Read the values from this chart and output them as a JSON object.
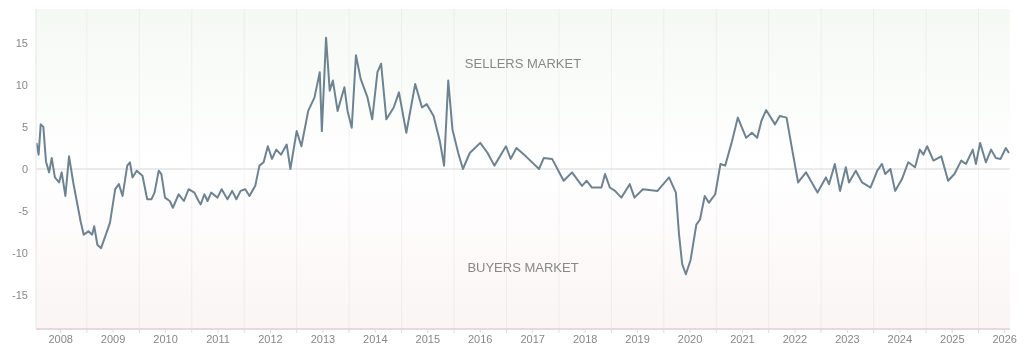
{
  "chart_data": {
    "type": "line",
    "x": [
      2007.54,
      2007.58,
      2007.62,
      2007.67,
      2007.72,
      2007.78,
      2007.83,
      2007.89,
      2007.97,
      2008.02,
      2008.09,
      2008.16,
      2008.24,
      2008.38,
      2008.44,
      2008.53,
      2008.6,
      2008.64,
      2008.7,
      2008.77,
      2008.85,
      2008.94,
      2009.04,
      2009.11,
      2009.18,
      2009.27,
      2009.32,
      2009.37,
      2009.45,
      2009.56,
      2009.65,
      2009.73,
      2009.79,
      2009.87,
      2009.92,
      2009.99,
      2010.08,
      2010.14,
      2010.25,
      2010.35,
      2010.44,
      2010.55,
      2010.63,
      2010.67,
      2010.74,
      2010.8,
      2010.87,
      2010.99,
      2011.07,
      2011.18,
      2011.27,
      2011.35,
      2011.43,
      2011.52,
      2011.6,
      2011.71,
      2011.79,
      2011.87,
      2011.95,
      2012.03,
      2012.11,
      2012.2,
      2012.31,
      2012.38,
      2012.43,
      2012.5,
      2012.59,
      2012.72,
      2012.78,
      2012.84,
      2012.94,
      2012.98,
      2013.06,
      2013.13,
      2013.19,
      2013.28,
      2013.41,
      2013.47,
      2013.55,
      2013.63,
      2013.72,
      2013.85,
      2013.94,
      2014.04,
      2014.11,
      2014.21,
      2014.35,
      2014.45,
      2014.59,
      2014.76,
      2014.89,
      2014.98,
      2015.11,
      2015.23,
      2015.31,
      2015.39,
      2015.47,
      2015.58,
      2015.67,
      2015.8,
      2016.0,
      2016.14,
      2016.27,
      2016.49,
      2016.58,
      2016.69,
      2016.87,
      2017.12,
      2017.21,
      2017.37,
      2017.59,
      2017.75,
      2017.94,
      2018.03,
      2018.13,
      2018.31,
      2018.38,
      2018.47,
      2018.57,
      2018.69,
      2018.85,
      2018.94,
      2019.1,
      2019.38,
      2019.6,
      2019.73,
      2019.79,
      2019.85,
      2019.92,
      2020.01,
      2020.12,
      2020.19,
      2020.28,
      2020.36,
      2020.48,
      2020.58,
      2020.67,
      2020.8,
      2020.91,
      2021.07,
      2021.18,
      2021.28,
      2021.36,
      2021.45,
      2021.62,
      2021.71,
      2021.84,
      2021.93,
      2022.06,
      2022.21,
      2022.43,
      2022.59,
      2022.65,
      2022.76,
      2022.86,
      2022.97,
      2023.03,
      2023.16,
      2023.28,
      2023.44,
      2023.57,
      2023.66,
      2023.72,
      2023.82,
      2023.91,
      2024.04,
      2024.16,
      2024.29,
      2024.38,
      2024.45,
      2024.52,
      2024.64,
      2024.79,
      2024.92,
      2025.04,
      2025.17,
      2025.26,
      2025.39,
      2025.45,
      2025.53,
      2025.64,
      2025.74,
      2025.83,
      2025.92,
      2026.02,
      2026.08
    ],
    "series": [
      {
        "color": "#6e8391",
        "values": [
          3.1,
          1.7,
          5.3,
          5.0,
          0.9,
          -0.4,
          1.3,
          -1.0,
          -1.6,
          -0.4,
          -3.2,
          1.5,
          -1.6,
          -6.2,
          -7.8,
          -7.4,
          -7.8,
          -6.8,
          -9.0,
          -9.4,
          -8.0,
          -6.4,
          -2.4,
          -1.8,
          -3.2,
          0.4,
          0.8,
          -1.0,
          -0.2,
          -0.8,
          -3.6,
          -3.6,
          -2.8,
          -0.2,
          -0.6,
          -3.4,
          -3.8,
          -4.6,
          -3.0,
          -3.8,
          -2.4,
          -2.8,
          -3.8,
          -4.2,
          -3.0,
          -3.8,
          -2.8,
          -3.4,
          -2.4,
          -3.6,
          -2.6,
          -3.6,
          -2.6,
          -2.4,
          -3.2,
          -2.0,
          0.4,
          0.8,
          2.7,
          1.2,
          2.3,
          1.7,
          2.9,
          0.0,
          1.9,
          4.5,
          2.7,
          6.9,
          7.7,
          8.5,
          11.5,
          4.5,
          15.6,
          9.3,
          10.5,
          6.9,
          9.7,
          6.9,
          4.9,
          13.5,
          10.7,
          8.5,
          5.9,
          11.5,
          12.5,
          5.9,
          7.3,
          9.1,
          4.3,
          10.1,
          7.3,
          7.7,
          6.3,
          3.3,
          0.4,
          10.5,
          4.7,
          1.9,
          0.0,
          1.9,
          3.1,
          1.9,
          0.4,
          2.7,
          1.2,
          2.5,
          1.5,
          0.0,
          1.3,
          1.2,
          -1.4,
          -0.4,
          -2.0,
          -1.4,
          -2.2,
          -2.2,
          -0.6,
          -2.2,
          -2.6,
          -3.4,
          -1.8,
          -3.4,
          -2.4,
          -2.6,
          -1.0,
          -2.8,
          -7.8,
          -11.3,
          -12.5,
          -10.8,
          -6.6,
          -6.0,
          -3.2,
          -4.0,
          -3.0,
          0.6,
          0.4,
          3.3,
          6.1,
          3.7,
          4.3,
          3.7,
          5.7,
          7.0,
          5.3,
          6.3,
          6.1,
          2.9,
          -1.6,
          -0.4,
          -2.8,
          -1.0,
          -1.8,
          0.6,
          -2.6,
          0.2,
          -1.6,
          -0.2,
          -1.6,
          -2.2,
          -0.2,
          0.6,
          -0.6,
          0.0,
          -2.6,
          -1.2,
          0.8,
          0.2,
          2.3,
          1.7,
          2.7,
          1.0,
          1.5,
          -1.4,
          -0.6,
          1.0,
          0.6,
          2.3,
          0.6,
          3.1,
          0.8,
          2.3,
          1.3,
          1.2,
          2.5,
          1.9
        ]
      }
    ],
    "xlim": [
      2007.53,
      2026.1
    ],
    "xticks": [
      2008,
      {
        "value": 2008.5,
        "label": null
      },
      2009,
      {
        "value": 2009.5,
        "label": null
      },
      2010,
      {
        "value": 2010.5,
        "label": null
      },
      2011,
      {
        "value": 2011.5,
        "label": null
      },
      2012,
      {
        "value": 2012.5,
        "label": null
      },
      2013,
      {
        "value": 2013.5,
        "label": null
      },
      2014,
      {
        "value": 2014.5,
        "label": null
      },
      2015,
      {
        "value": 2015.5,
        "label": null
      },
      2016,
      {
        "value": 2016.5,
        "label": null
      },
      2017,
      {
        "value": 2017.5,
        "label": null
      },
      2018,
      {
        "value": 2018.5,
        "label": null
      },
      2019,
      {
        "value": 2019.5,
        "label": null
      },
      2020,
      {
        "value": 2020.5,
        "label": null
      },
      2021,
      {
        "value": 2021.5,
        "label": null
      },
      2022,
      {
        "value": 2022.5,
        "label": null
      },
      2023,
      {
        "value": 2023.5,
        "label": null
      },
      2024,
      {
        "value": 2024.5,
        "label": null
      },
      2025,
      {
        "value": 2025.5,
        "label": null
      },
      2026
    ],
    "ylim": [
      -19,
      19
    ],
    "yticks": [
      -15,
      -10,
      -5,
      0,
      5,
      10,
      15
    ],
    "grid": "x",
    "legend": false,
    "marker": "none",
    "line_style": "solid",
    "ref_lines": [
      {
        "axis": "y",
        "value": 0,
        "color": "#d6d6d6"
      }
    ],
    "bands": [
      {
        "axis": "y",
        "from": 0,
        "to": 19,
        "label": "SELLERS MARKET",
        "color": "#eef5ec"
      },
      {
        "axis": "y",
        "from": -19,
        "to": 0,
        "label": "BUYERS MARKET",
        "color": "#f8eeee"
      }
    ]
  }
}
